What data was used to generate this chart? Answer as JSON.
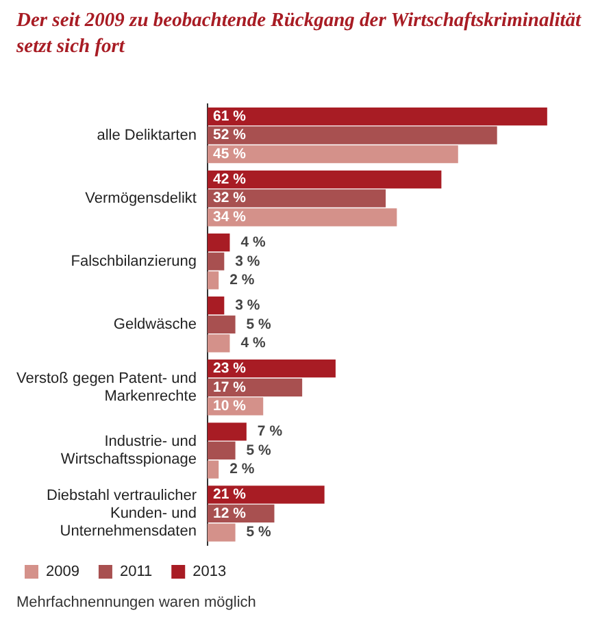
{
  "chart_data": {
    "type": "bar",
    "orientation": "horizontal",
    "title": "Der seit 2009 zu beobachtende Rückgang der Wirtschaftskriminalität setzt sich fort",
    "categories": [
      "alle Deliktarten",
      "Vermögensdelikt",
      "Falschbilanzierung",
      "Geldwäsche",
      "Verstoß gegen Patent- und Markenrechte",
      "Industrie- und Wirtschaftsspionage",
      "Diebstahl vertraulicher Kunden- und Unternehmensdaten"
    ],
    "series": [
      {
        "name": "2013",
        "color": "#a81c24",
        "values": [
          61,
          42,
          4,
          3,
          23,
          7,
          21
        ],
        "value_labels": [
          "61 %",
          "42 %",
          "4 %",
          "3 %",
          "23 %",
          "7 %",
          "21 %"
        ]
      },
      {
        "name": "2011",
        "color": "#a85050",
        "values": [
          52,
          32,
          3,
          5,
          17,
          5,
          12
        ],
        "value_labels": [
          "52 %",
          "32 %",
          "3 %",
          "5 %",
          "17 %",
          "5 %",
          "12 %"
        ]
      },
      {
        "name": "2009",
        "color": "#d4918a",
        "values": [
          45,
          34,
          2,
          4,
          10,
          2,
          5
        ],
        "value_labels": [
          "45 %",
          "34 %",
          "2 %",
          "4 %",
          "10 %",
          "2 %",
          "5 %"
        ]
      }
    ],
    "legend": "bottom",
    "annotations": [
      "Mehrfachnennungen waren möglich"
    ]
  }
}
